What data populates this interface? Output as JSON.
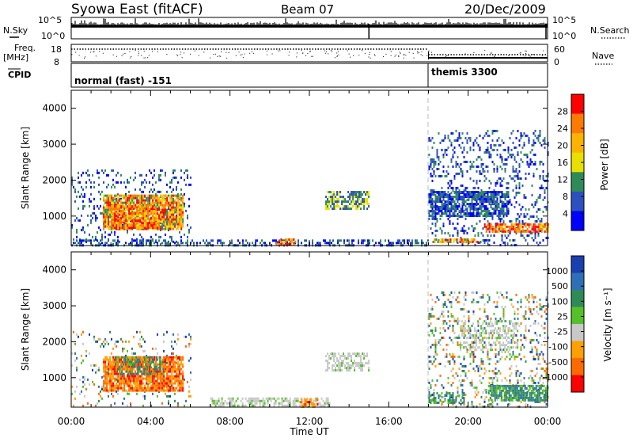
{
  "header": {
    "station": "Syowa East (fitACF)",
    "beam": "Beam 07",
    "date": "20/Dec/2009"
  },
  "top_panels": {
    "nsky_label": "N.Sky",
    "nsky_ticks": [
      "10^5",
      "10^0"
    ],
    "nsearch_label": "N.Search",
    "nsearch_ticks": [
      "10^5",
      "10^0"
    ],
    "freq_label": "Freq.",
    "freq_unit": "[MHz]",
    "freq_ticks": [
      "18",
      "8"
    ],
    "nave_label": "Nave",
    "nave_ticks": [
      "60",
      "0"
    ],
    "cpid_label": "CPID",
    "cpid_segments": [
      {
        "label": "normal (fast) -151",
        "start_hour": 0
      },
      {
        "label": "themis 3300",
        "start_hour": 18
      }
    ]
  },
  "x_axis": {
    "label": "Time UT",
    "ticks": [
      "00:00",
      "04:00",
      "08:00",
      "12:00",
      "16:00",
      "20:00",
      "00:00"
    ],
    "range_hours": [
      0,
      24
    ]
  },
  "chart_data": [
    {
      "type": "heatmap",
      "panel": "power",
      "ylabel": "Slant Range [km]",
      "ylim": [
        180,
        4500
      ],
      "yticks": [
        1000,
        2000,
        3000,
        4000
      ],
      "colorbar": {
        "label": "Power [dB]",
        "ticks": [
          "28",
          "24",
          "20",
          "16",
          "12",
          "8",
          "4"
        ],
        "colors": [
          "#ff0000",
          "#ff7a00",
          "#ffb300",
          "#e8e000",
          "#2e8b57",
          "#2d4fbf",
          "#0000ff"
        ]
      },
      "regions": [
        {
          "t": [
            0.0,
            6.0
          ],
          "r": [
            200,
            2300
          ],
          "level": "low",
          "density": 0.15
        },
        {
          "t": [
            1.6,
            5.6
          ],
          "r": [
            650,
            1600
          ],
          "level": "high",
          "density": 0.85
        },
        {
          "t": [
            2.0,
            4.4
          ],
          "r": [
            700,
            1300
          ],
          "level": "very-high",
          "density": 0.7
        },
        {
          "t": [
            0.0,
            18.0
          ],
          "r": [
            200,
            350
          ],
          "level": "low",
          "density": 0.45
        },
        {
          "t": [
            10.3,
            11.3
          ],
          "r": [
            220,
            380
          ],
          "level": "very-high",
          "density": 0.7
        },
        {
          "t": [
            12.8,
            15.0
          ],
          "r": [
            1200,
            1700
          ],
          "level": "mid",
          "density": 0.6
        },
        {
          "t": [
            18.0,
            24.0
          ],
          "r": [
            200,
            3400
          ],
          "level": "low",
          "density": 0.2
        },
        {
          "t": [
            18.0,
            22.0
          ],
          "r": [
            1000,
            1700
          ],
          "level": "low",
          "density": 0.75
        },
        {
          "t": [
            20.8,
            24.0
          ],
          "r": [
            550,
            800
          ],
          "level": "very-high",
          "density": 0.8
        },
        {
          "t": [
            18.2,
            20.6
          ],
          "r": [
            280,
            380
          ],
          "level": "high",
          "density": 0.6
        }
      ]
    },
    {
      "type": "heatmap",
      "panel": "velocity",
      "ylabel": "Slant Range [km]",
      "ylim": [
        180,
        4500
      ],
      "yticks": [
        1000,
        2000,
        3000,
        4000
      ],
      "colorbar": {
        "label": "Velocity [m s⁻¹]",
        "ticks": [
          "1000",
          "500",
          "100",
          "25",
          "-25",
          "-100",
          "-500",
          "-1000"
        ],
        "colors": [
          "#1a3fb0",
          "#2e6fb8",
          "#2e8b57",
          "#55c02a",
          "#c8c8c8",
          "#ff9f00",
          "#ff6a00",
          "#ff0000"
        ]
      },
      "regions": [
        {
          "t": [
            0.0,
            6.0
          ],
          "r": [
            200,
            2300
          ],
          "level": "mixed",
          "density": 0.12
        },
        {
          "t": [
            1.6,
            5.6
          ],
          "r": [
            650,
            1600
          ],
          "level": "negative",
          "density": 0.85
        },
        {
          "t": [
            2.2,
            4.6
          ],
          "r": [
            1100,
            1600
          ],
          "level": "positive",
          "density": 0.4
        },
        {
          "t": [
            7.0,
            13.0
          ],
          "r": [
            200,
            450
          ],
          "level": "zero",
          "density": 0.55
        },
        {
          "t": [
            11.5,
            12.4
          ],
          "r": [
            220,
            420
          ],
          "level": "negative",
          "density": 0.6
        },
        {
          "t": [
            12.8,
            15.0
          ],
          "r": [
            1200,
            1700
          ],
          "level": "zero",
          "density": 0.6
        },
        {
          "t": [
            18.0,
            24.0
          ],
          "r": [
            200,
            3400
          ],
          "level": "mixed",
          "density": 0.2
        },
        {
          "t": [
            19.5,
            22.5
          ],
          "r": [
            1800,
            2600
          ],
          "level": "zero",
          "density": 0.35
        },
        {
          "t": [
            18.0,
            19.8
          ],
          "r": [
            280,
            600
          ],
          "level": "positive",
          "density": 0.6
        },
        {
          "t": [
            21.0,
            24.0
          ],
          "r": [
            400,
            800
          ],
          "level": "positive",
          "density": 0.75
        }
      ]
    }
  ]
}
